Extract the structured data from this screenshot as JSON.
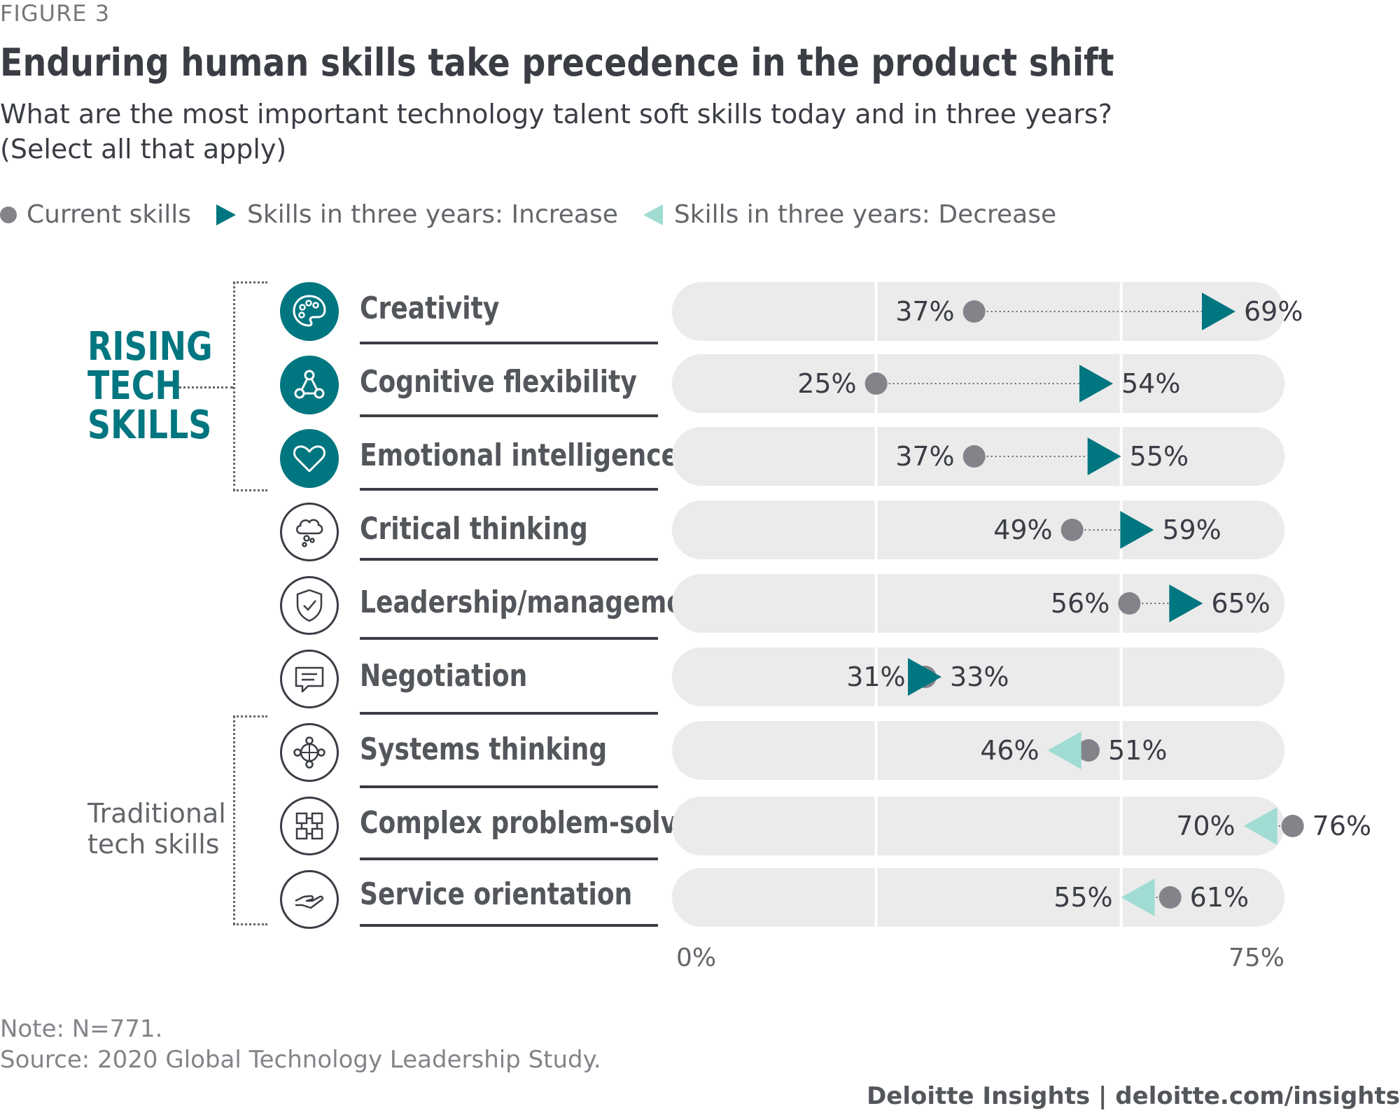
{
  "figure_label": "FIGURE 3",
  "title": "Enduring human skills take precedence in the product shift",
  "subtitle": "What are the most important technology talent soft skills today and in three years? (Select all that apply)",
  "legend": {
    "current": "Current skills",
    "increase": "Skills in three years: Increase",
    "decrease": "Skills in three years: Decrease"
  },
  "groups": {
    "rising_line1": "RISING",
    "rising_line2": "TECH",
    "rising_line3": "SKILLS",
    "traditional_line1": "Traditional",
    "traditional_line2": "tech skills"
  },
  "colors": {
    "teal": "#007680",
    "light_teal": "#a0dcd4",
    "dot": "#828489",
    "track": "#ebebeb",
    "text": "#3a3d44"
  },
  "skills": [
    {
      "label": "Creativity",
      "icon": "palette-icon",
      "group": "rising"
    },
    {
      "label": "Cognitive flexibility",
      "icon": "network-nodes-icon",
      "group": "rising"
    },
    {
      "label": "Emotional intelligence",
      "icon": "heart-icon",
      "group": "rising"
    },
    {
      "label": "Critical thinking",
      "icon": "thought-cloud-icon",
      "group": "none"
    },
    {
      "label": "Leadership/management",
      "icon": "shield-check-icon",
      "group": "none"
    },
    {
      "label": "Negotiation",
      "icon": "chat-bubble-icon",
      "group": "none"
    },
    {
      "label": "Systems thinking",
      "icon": "compass-nodes-icon",
      "group": "traditional"
    },
    {
      "label": "Complex problem-solving",
      "icon": "grid-blocks-icon",
      "group": "traditional"
    },
    {
      "label": "Service orientation",
      "icon": "hand-icon",
      "group": "traditional"
    }
  ],
  "chart_data": {
    "type": "dumbbell",
    "xlim": [
      0,
      75
    ],
    "x_ticks": [
      "0%",
      "75%"
    ],
    "categories": [
      "Creativity",
      "Cognitive flexibility",
      "Emotional intelligence",
      "Critical thinking",
      "Leadership/management",
      "Negotiation",
      "Systems thinking",
      "Complex problem-solving",
      "Service orientation"
    ],
    "series": [
      {
        "name": "Current skills",
        "values": [
          37,
          25,
          37,
          49,
          56,
          31,
          51,
          76,
          61
        ]
      },
      {
        "name": "Skills in three years",
        "values": [
          69,
          54,
          55,
          59,
          65,
          33,
          46,
          70,
          55
        ]
      }
    ]
  },
  "footer": {
    "note": "Note: N=771.",
    "source": "Source: 2020 Global Technology Leadership Study.",
    "brand": "Deloitte Insights | deloitte.com/insights"
  }
}
